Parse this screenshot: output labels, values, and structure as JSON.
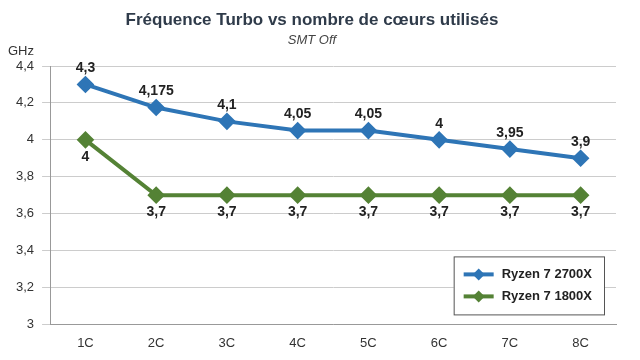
{
  "chart_data": {
    "type": "line",
    "title": "Fréquence Turbo vs nombre de cœurs utilisés",
    "subtitle": "SMT Off",
    "y_label": "GHz",
    "categories": [
      "1C",
      "2C",
      "3C",
      "4C",
      "5C",
      "6C",
      "7C",
      "8C"
    ],
    "series": [
      {
        "name": "Ryzen 7 2700X",
        "color": "#2e75b6",
        "marker": "diamond",
        "values": [
          4.3,
          4.175,
          4.1,
          4.05,
          4.05,
          4,
          3.95,
          3.9
        ],
        "value_labels": [
          "4,3",
          "4,175",
          "4,1",
          "4,05",
          "4,05",
          "4",
          "3,95",
          "3,9"
        ]
      },
      {
        "name": "Ryzen 7 1800X",
        "color": "#548235",
        "marker": "diamond",
        "values": [
          4,
          3.7,
          3.7,
          3.7,
          3.7,
          3.7,
          3.7,
          3.7
        ],
        "value_labels": [
          "4",
          "3,7",
          "3,7",
          "3,7",
          "3,7",
          "3,7",
          "3,7",
          "3,7"
        ]
      }
    ],
    "ylim": [
      3,
      4.4
    ],
    "yticks": [
      3,
      {
        "value": 3.2,
        "label": "3,2"
      },
      {
        "value": 3.4,
        "label": "3,4"
      },
      {
        "value": 3.6,
        "label": "3,6"
      },
      {
        "value": 3.8,
        "label": "3,8"
      },
      4,
      {
        "value": 4.2,
        "label": "4,2"
      },
      {
        "value": 4.4,
        "label": "4,4"
      }
    ],
    "grid": true,
    "legend": "lower right",
    "data_labels": true
  }
}
